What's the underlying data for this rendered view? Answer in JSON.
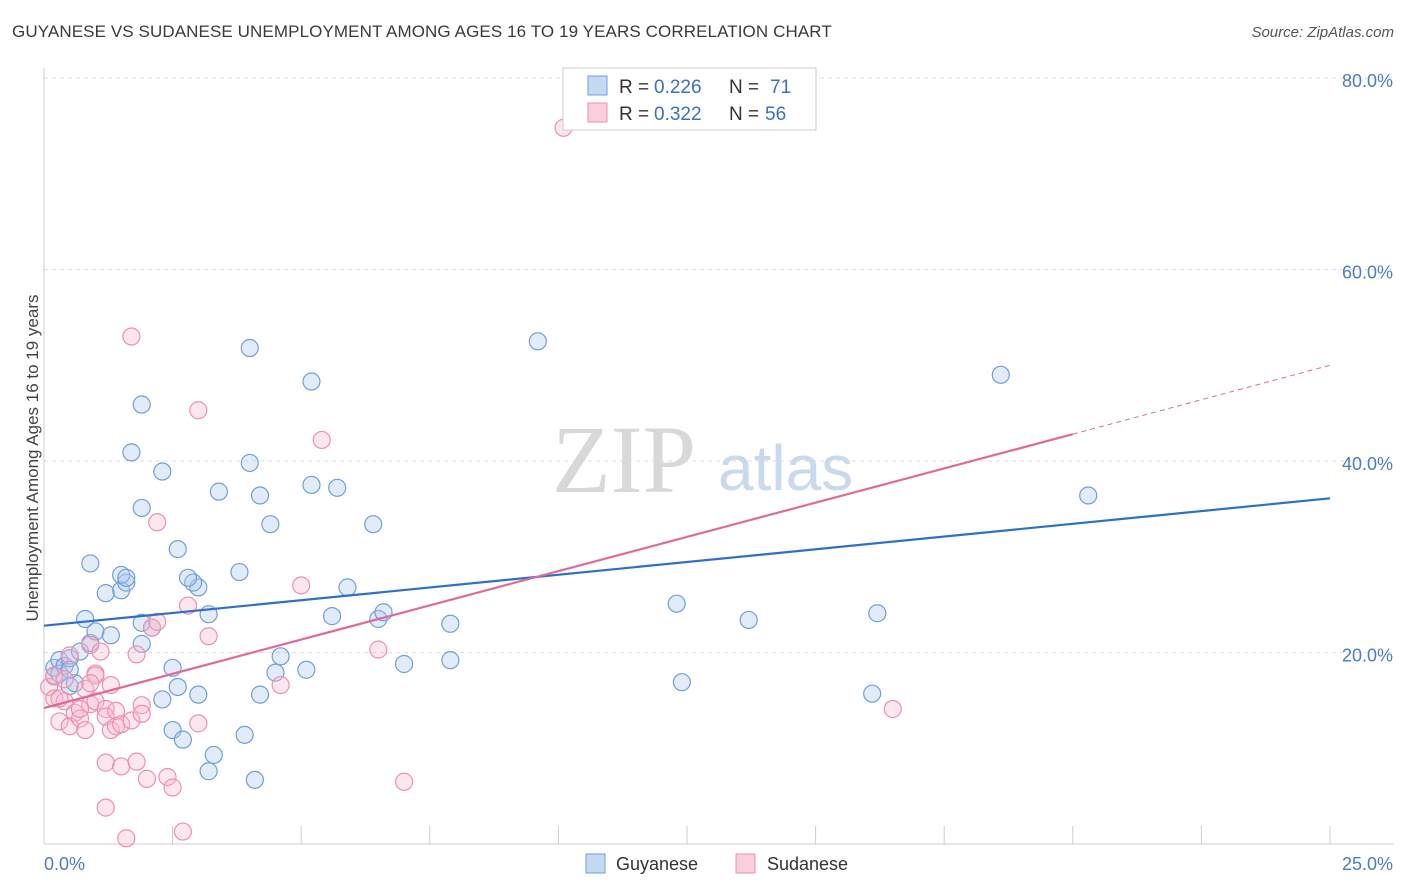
{
  "title": "GUYANESE VS SUDANESE UNEMPLOYMENT AMONG AGES 16 TO 19 YEARS CORRELATION CHART",
  "source": "Source: ZipAtlas.com",
  "watermark": {
    "zip": "ZIP",
    "atlas": "atlas"
  },
  "legend": {
    "r_label": "R =",
    "n_label": "N =",
    "guyanese": {
      "r": "0.226",
      "n": "71"
    },
    "sudanese": {
      "r": "0.322",
      "n": "56"
    }
  },
  "chart_data": {
    "type": "scatter",
    "title": "GUYANESE VS SUDANESE UNEMPLOYMENT AMONG AGES 16 TO 19 YEARS CORRELATION CHART",
    "xlabel": "",
    "ylabel": "Unemployment Among Ages 16 to 19 years",
    "xlim": [
      0,
      25
    ],
    "ylim": [
      0,
      80
    ],
    "x_tick_labels": [
      "0.0%",
      "25.0%"
    ],
    "y_ticks": [
      20,
      40,
      60,
      80
    ],
    "y_tick_labels": [
      "20.0%",
      "40.0%",
      "60.0%",
      "80.0%"
    ],
    "legend_position": "top-center",
    "colors": {
      "guyanese": "#6f9fdc",
      "sudanese": "#ef8fb0",
      "guyanese_line": "#2f6fcb",
      "sudanese_line": "#e0699a"
    },
    "series": [
      {
        "name": "Guyanese",
        "points": [
          [
            0.2,
            17.5
          ],
          [
            0.2,
            18.4
          ],
          [
            0.3,
            19.2
          ],
          [
            0.3,
            17.8
          ],
          [
            0.4,
            18.6
          ],
          [
            0.5,
            16.5
          ],
          [
            0.6,
            16.8
          ],
          [
            0.5,
            19.4
          ],
          [
            0.7,
            20.1
          ],
          [
            0.9,
            21.0
          ],
          [
            1.0,
            22.2
          ],
          [
            1.3,
            21.8
          ],
          [
            0.8,
            23.5
          ],
          [
            0.9,
            29.3
          ],
          [
            1.2,
            26.2
          ],
          [
            1.5,
            26.5
          ],
          [
            1.6,
            27.3
          ],
          [
            1.5,
            28.1
          ],
          [
            1.6,
            27.8
          ],
          [
            1.9,
            23.1
          ],
          [
            1.9,
            20.9
          ],
          [
            2.1,
            22.6
          ],
          [
            2.5,
            18.4
          ],
          [
            2.3,
            15.1
          ],
          [
            2.6,
            16.4
          ],
          [
            3.0,
            15.6
          ],
          [
            2.5,
            11.9
          ],
          [
            2.7,
            10.9
          ],
          [
            3.2,
            7.6
          ],
          [
            3.3,
            9.3
          ],
          [
            3.9,
            11.4
          ],
          [
            4.1,
            6.7
          ],
          [
            4.2,
            15.6
          ],
          [
            4.5,
            17.9
          ],
          [
            4.6,
            19.6
          ],
          [
            4.0,
            39.8
          ],
          [
            4.2,
            36.4
          ],
          [
            4.4,
            33.4
          ],
          [
            3.4,
            36.8
          ],
          [
            3.8,
            28.4
          ],
          [
            3.2,
            24.0
          ],
          [
            3.0,
            26.8
          ],
          [
            2.9,
            27.3
          ],
          [
            2.8,
            27.8
          ],
          [
            2.6,
            30.8
          ],
          [
            2.3,
            38.9
          ],
          [
            1.9,
            35.1
          ],
          [
            1.7,
            40.9
          ],
          [
            1.9,
            45.9
          ],
          [
            4.0,
            51.8
          ],
          [
            5.2,
            48.3
          ],
          [
            5.2,
            37.5
          ],
          [
            5.7,
            37.2
          ],
          [
            5.9,
            26.8
          ],
          [
            5.6,
            23.8
          ],
          [
            6.4,
            33.4
          ],
          [
            6.5,
            23.5
          ],
          [
            6.6,
            24.2
          ],
          [
            7.0,
            18.8
          ],
          [
            7.9,
            19.2
          ],
          [
            7.9,
            23.0
          ],
          [
            5.1,
            18.2
          ],
          [
            9.6,
            52.5
          ],
          [
            12.3,
            25.1
          ],
          [
            12.4,
            16.9
          ],
          [
            13.7,
            23.4
          ],
          [
            16.2,
            24.1
          ],
          [
            16.1,
            15.7
          ],
          [
            18.6,
            49.0
          ],
          [
            20.3,
            36.4
          ],
          [
            0.5,
            18.2
          ]
        ]
      },
      {
        "name": "Sudanese",
        "points": [
          [
            0.1,
            16.4
          ],
          [
            0.2,
            15.2
          ],
          [
            0.2,
            17.6
          ],
          [
            0.3,
            12.8
          ],
          [
            0.4,
            14.9
          ],
          [
            0.4,
            17.2
          ],
          [
            0.5,
            12.3
          ],
          [
            0.6,
            13.7
          ],
          [
            0.7,
            13.1
          ],
          [
            0.8,
            11.9
          ],
          [
            0.8,
            16.2
          ],
          [
            0.9,
            20.8
          ],
          [
            0.9,
            14.6
          ],
          [
            1.0,
            14.9
          ],
          [
            1.0,
            17.8
          ],
          [
            1.1,
            20.1
          ],
          [
            1.2,
            14.1
          ],
          [
            1.2,
            13.3
          ],
          [
            1.2,
            8.5
          ],
          [
            1.3,
            16.6
          ],
          [
            1.3,
            11.9
          ],
          [
            1.4,
            12.3
          ],
          [
            1.4,
            13.9
          ],
          [
            1.5,
            12.5
          ],
          [
            1.5,
            8.1
          ],
          [
            1.6,
            0.6
          ],
          [
            1.7,
            12.9
          ],
          [
            1.8,
            8.6
          ],
          [
            1.9,
            14.5
          ],
          [
            1.9,
            13.6
          ],
          [
            1.8,
            19.8
          ],
          [
            2.0,
            6.8
          ],
          [
            2.1,
            22.6
          ],
          [
            2.2,
            23.2
          ],
          [
            2.4,
            7.0
          ],
          [
            2.5,
            5.9
          ],
          [
            2.7,
            1.3
          ],
          [
            2.8,
            24.9
          ],
          [
            3.0,
            12.6
          ],
          [
            3.2,
            21.7
          ],
          [
            2.2,
            33.6
          ],
          [
            1.7,
            53.0
          ],
          [
            3.0,
            45.3
          ],
          [
            5.0,
            27.0
          ],
          [
            5.4,
            42.2
          ],
          [
            6.5,
            20.3
          ],
          [
            7.0,
            6.5
          ],
          [
            4.6,
            16.6
          ],
          [
            1.2,
            3.8
          ],
          [
            0.3,
            15.2
          ],
          [
            0.5,
            19.7
          ],
          [
            1.0,
            17.6
          ],
          [
            0.7,
            14.1
          ],
          [
            0.9,
            16.8
          ],
          [
            16.5,
            14.1
          ],
          [
            10.1,
            74.8
          ]
        ]
      }
    ],
    "trend_lines": [
      {
        "name": "Guyanese",
        "x": [
          0,
          25
        ],
        "y": [
          22.8,
          36.1
        ],
        "style": "solid"
      },
      {
        "name": "Sudanese",
        "x": [
          0,
          20
        ],
        "y": [
          14.2,
          42.8
        ],
        "style": "solid"
      },
      {
        "name": "Sudanese",
        "x": [
          20,
          25
        ],
        "y": [
          42.8,
          50.0
        ],
        "style": "dashed"
      }
    ]
  }
}
